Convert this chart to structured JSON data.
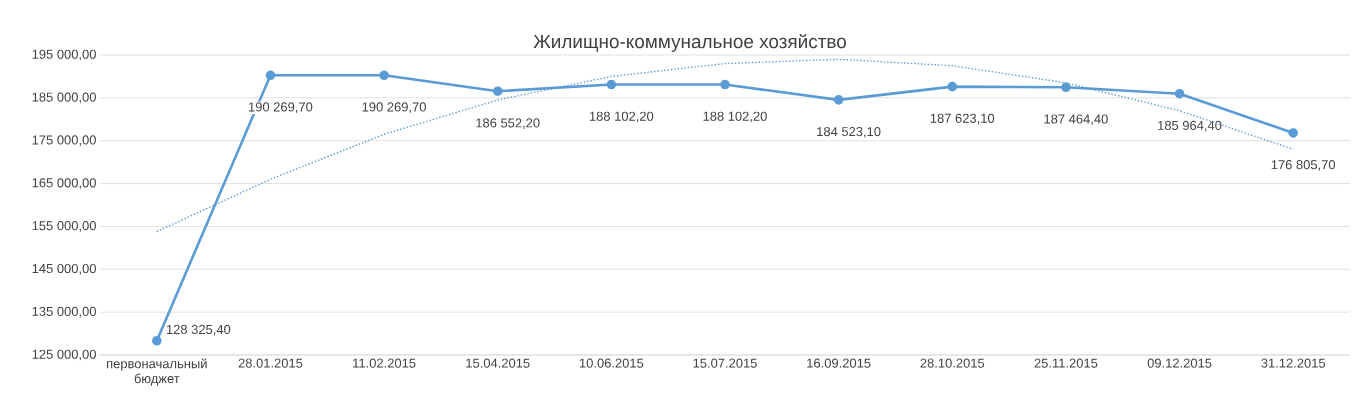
{
  "chart_data": {
    "type": "line",
    "title": "Жилищно-коммунальное хозяйство",
    "categories": [
      "первоначальный бюджет",
      "28.01.2015",
      "11.02.2015",
      "15.04.2015",
      "10.06.2015",
      "15.07.2015",
      "16.09.2015",
      "28.10.2015",
      "25.11.2015",
      "09.12.2015",
      "31.12.2015"
    ],
    "series": [
      {
        "color": "#5b9bd5",
        "marker": "circle",
        "line_style": "solid",
        "values": [
          128325.4,
          190269.7,
          190269.7,
          186552.2,
          188102.2,
          188102.2,
          184523.1,
          187623.1,
          187464.4,
          185964.4,
          176805.7
        ],
        "value_labels": [
          "128 325,40",
          "190 269,70",
          "190 269,70",
          "186 552,20",
          "188 102,20",
          "188 102,20",
          "184 523,10",
          "187 623,10",
          "187 464,40",
          "185 964,40",
          "176 805,70"
        ]
      },
      {
        "color": "#5b9bd5",
        "marker": "none",
        "line_style": "dotted",
        "values": [
          153800,
          166000,
          176500,
          184500,
          190000,
          193000,
          194000,
          192500,
          188500,
          182000,
          173000
        ]
      }
    ],
    "ylim": [
      125000,
      195000
    ],
    "yticks": [
      {
        "value": 125000,
        "label": "125 000,00"
      },
      {
        "value": 135000,
        "label": "135 000,00"
      },
      {
        "value": 145000,
        "label": "145 000,00"
      },
      {
        "value": 155000,
        "label": "155 000,00"
      },
      {
        "value": 165000,
        "label": "165 000,00"
      },
      {
        "value": 175000,
        "label": "175 000,00"
      },
      {
        "value": 185000,
        "label": "185 000,00"
      },
      {
        "value": 195000,
        "label": "195 000,00"
      }
    ],
    "grid": "y"
  }
}
